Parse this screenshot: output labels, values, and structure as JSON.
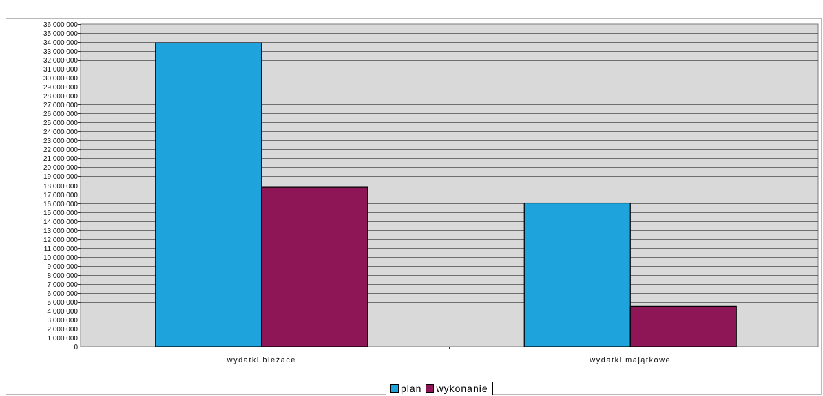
{
  "chart_data": {
    "type": "bar",
    "title": "",
    "xlabel": "",
    "ylabel": "",
    "categories": [
      "wydatki bieżace",
      "wydatki majątkowe"
    ],
    "series": [
      {
        "name": "plan",
        "color": "#1fa3dc",
        "values": [
          33900000,
          16000000
        ]
      },
      {
        "name": "wykonanie",
        "color": "#8e1656",
        "values": [
          17800000,
          4500000
        ]
      }
    ],
    "ylim": [
      0,
      36000000
    ],
    "ytick_step": 1000000,
    "ytick_labels": [
      "0",
      "1 000 000",
      "2 000 000",
      "3 000 000",
      "4 000 000",
      "5 000 000",
      "6 000 000",
      "7 000 000",
      "8 000 000",
      "9 000 000",
      "10 000 000",
      "11 000 000",
      "12 000 000",
      "13 000 000",
      "14 000 000",
      "15 000 000",
      "16 000 000",
      "17 000 000",
      "18 000 000",
      "19 000 000",
      "20 000 000",
      "21 000 000",
      "22 000 000",
      "23 000 000",
      "24 000 000",
      "25 000 000",
      "26 000 000",
      "27 000 000",
      "28 000 000",
      "29 000 000",
      "30 000 000",
      "31 000 000",
      "32 000 000",
      "33 000 000",
      "34 000 000",
      "35 000 000",
      "36 000 000"
    ],
    "grid": true,
    "legend_position": "bottom-center",
    "plot_background": "#d9d9d9"
  },
  "legend": {
    "items": [
      {
        "label": "plan",
        "color": "#1fa3dc"
      },
      {
        "label": "wykonanie",
        "color": "#8e1656"
      }
    ]
  }
}
